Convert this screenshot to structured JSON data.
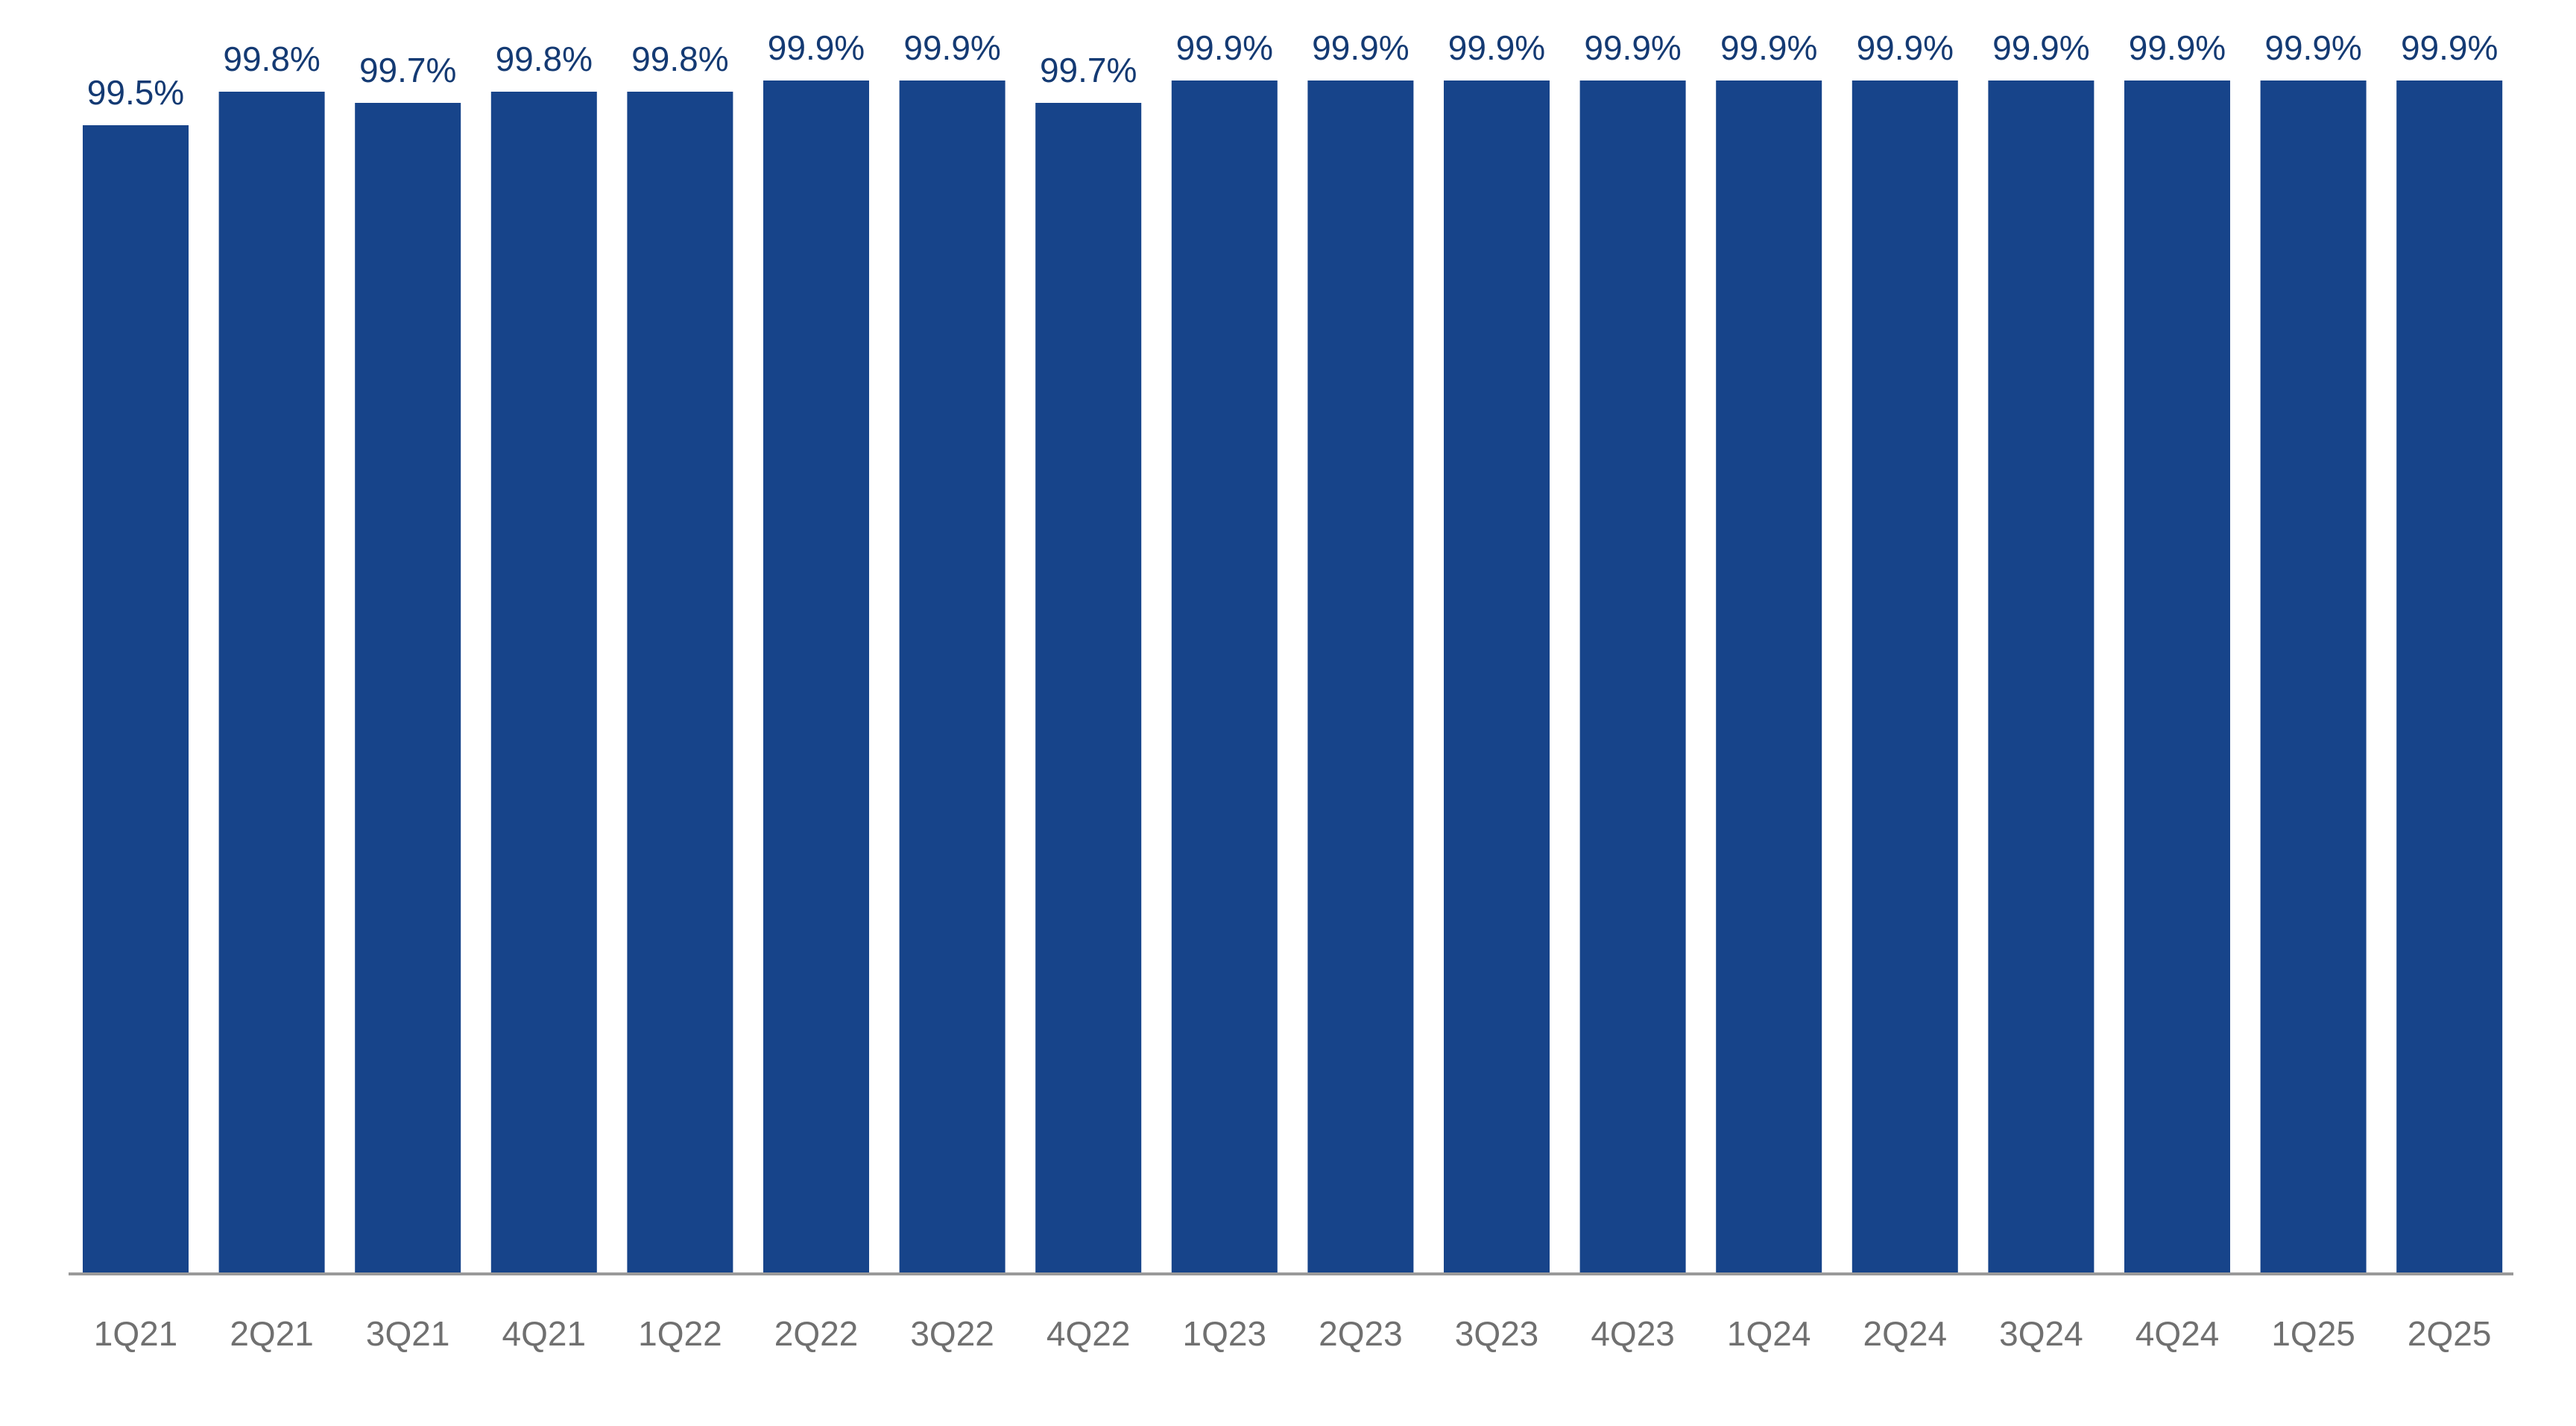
{
  "colors": {
    "bar": "#17448A",
    "value_label": "#143A73",
    "tick_label": "#707070",
    "axis_line": "#9A9A9A",
    "background": "#FFFFFF"
  },
  "chart_data": {
    "type": "bar",
    "title": "",
    "xlabel": "",
    "ylabel": "",
    "categories": [
      "1Q21",
      "2Q21",
      "3Q21",
      "4Q21",
      "1Q22",
      "2Q22",
      "3Q22",
      "4Q22",
      "1Q23",
      "2Q23",
      "3Q23",
      "4Q23",
      "1Q24",
      "2Q24",
      "3Q24",
      "4Q24",
      "1Q25",
      "2Q25"
    ],
    "values": [
      99.5,
      99.8,
      99.7,
      99.8,
      99.8,
      99.9,
      99.9,
      99.7,
      99.9,
      99.9,
      99.9,
      99.9,
      99.9,
      99.9,
      99.9,
      99.9,
      99.9,
      99.9
    ],
    "value_labels": [
      "99.5%",
      "99.8%",
      "99.7%",
      "99.8%",
      "99.8%",
      "99.9%",
      "99.9%",
      "99.7%",
      "99.9%",
      "99.9%",
      "99.9%",
      "99.9%",
      "99.9%",
      "99.9%",
      "99.9%",
      "99.9%",
      "99.9%",
      "99.9%"
    ],
    "grid": false,
    "legend": "none"
  }
}
